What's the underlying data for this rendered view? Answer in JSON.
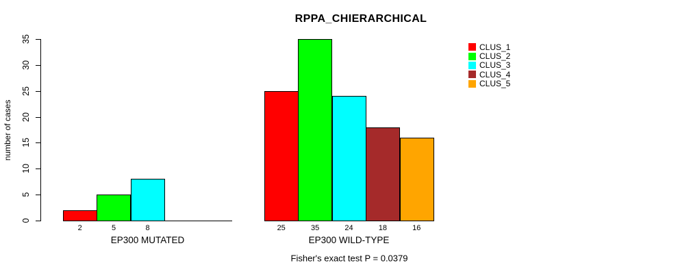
{
  "figure": {
    "title": "RPPA_CHIERARCHICAL",
    "footer": "Fisher's exact test P = 0.0379",
    "ylabel": "number of cases"
  },
  "chart_data": {
    "type": "bar",
    "title": "RPPA_CHIERARCHICAL",
    "xlabel": "",
    "ylabel": "number of cases",
    "ylim": [
      0,
      35
    ],
    "yticks": [
      0,
      5,
      10,
      15,
      20,
      25,
      30,
      35
    ],
    "grid": false,
    "legend_position": "right",
    "categories": [
      "EP300 MUTATED",
      "EP300 WILD-TYPE"
    ],
    "series": [
      {
        "name": "CLUS_1",
        "color": "#FF0000",
        "values": [
          2,
          25
        ]
      },
      {
        "name": "CLUS_2",
        "color": "#00FF00",
        "values": [
          5,
          35
        ]
      },
      {
        "name": "CLUS_3",
        "color": "#00FFFF",
        "values": [
          8,
          24
        ]
      },
      {
        "name": "CLUS_4",
        "color": "#A52A2A",
        "values": [
          0,
          18
        ]
      },
      {
        "name": "CLUS_5",
        "color": "#FFA500",
        "values": [
          0,
          16
        ]
      }
    ],
    "bar_value_labels": {
      "shown": true,
      "show_zero": false
    },
    "annotation": "Fisher's exact test P = 0.0379"
  }
}
